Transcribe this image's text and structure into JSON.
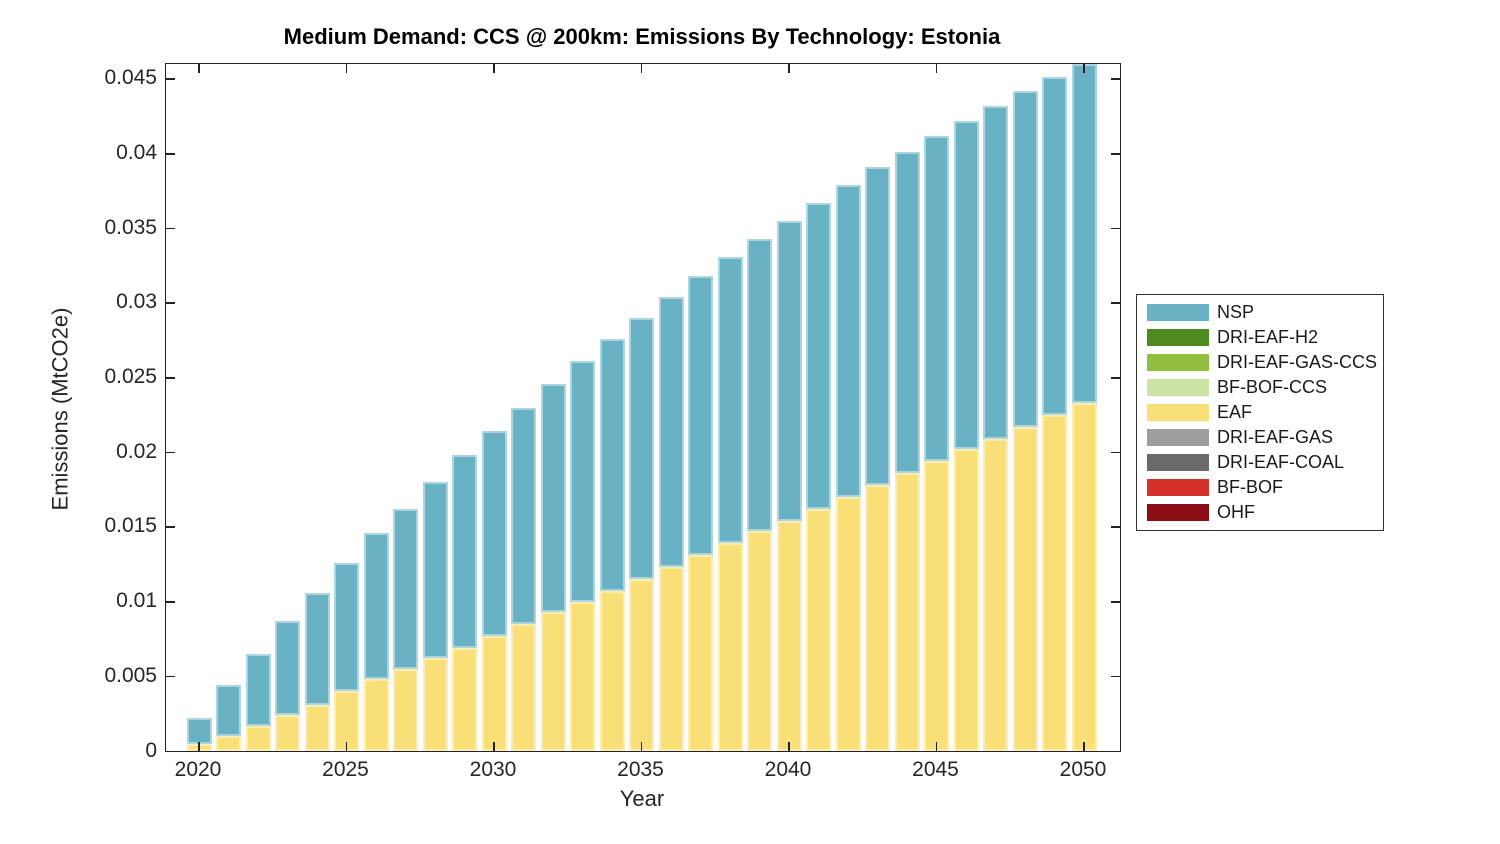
{
  "chart_data": {
    "type": "bar",
    "stacked": true,
    "title": "Medium Demand: CCS @ 200km: Emissions By Technology: Estonia",
    "xlabel": "Year",
    "ylabel": "Emissions (MtCO2e)",
    "grid": false,
    "legend_position": "outside-right",
    "ylim": [
      0,
      0.046
    ],
    "yticks": [
      0,
      0.005,
      0.01,
      0.015,
      0.02,
      0.025,
      0.03,
      0.035,
      0.04,
      0.045
    ],
    "ytick_labels": [
      "0",
      "0.005",
      "0.01",
      "0.015",
      "0.02",
      "0.025",
      "0.03",
      "0.035",
      "0.04",
      "0.045"
    ],
    "xticks": [
      2020,
      2025,
      2030,
      2035,
      2040,
      2045,
      2050
    ],
    "categories": [
      2020,
      2021,
      2022,
      2023,
      2024,
      2025,
      2026,
      2027,
      2028,
      2029,
      2030,
      2031,
      2032,
      2033,
      2034,
      2035,
      2036,
      2037,
      2038,
      2039,
      2040,
      2041,
      2042,
      2043,
      2044,
      2045,
      2046,
      2047,
      2048,
      2049,
      2050
    ],
    "stack_order_bottom_to_top": [
      "OHF",
      "BF-BOF",
      "DRI-EAF-COAL",
      "DRI-EAF-GAS",
      "EAF",
      "BF-BOF-CCS",
      "DRI-EAF-GAS-CCS",
      "DRI-EAF-H2",
      "NSP"
    ],
    "series": [
      {
        "name": "NSP",
        "color": "#68b2c3",
        "values": [
          0.0017,
          0.0034,
          0.0048,
          0.0063,
          0.0075,
          0.0086,
          0.0098,
          0.0107,
          0.0118,
          0.0129,
          0.0137,
          0.0145,
          0.0153,
          0.0161,
          0.0169,
          0.0175,
          0.0181,
          0.0187,
          0.0192,
          0.0196,
          0.0201,
          0.0205,
          0.0209,
          0.0213,
          0.0215,
          0.0218,
          0.022,
          0.0223,
          0.0225,
          0.0226,
          0.0227
        ]
      },
      {
        "name": "DRI-EAF-H2",
        "color": "#4e8a20",
        "values": [
          0,
          0,
          0,
          0,
          0,
          0,
          0,
          0,
          0,
          0,
          0,
          0,
          0,
          0,
          0,
          0,
          0,
          0,
          0,
          0,
          0,
          0,
          0,
          0,
          0,
          0,
          0,
          0,
          0,
          0,
          0
        ]
      },
      {
        "name": "DRI-EAF-GAS-CCS",
        "color": "#90c03d",
        "values": [
          0,
          0,
          0,
          0,
          0,
          0,
          0,
          0,
          0,
          0,
          0,
          0,
          0,
          0,
          0,
          0,
          0,
          0,
          0,
          0,
          0,
          0,
          0,
          0,
          0,
          0,
          0,
          0,
          0,
          0,
          0
        ]
      },
      {
        "name": "BF-BOF-CCS",
        "color": "#cbe3a4",
        "values": [
          0,
          0,
          0,
          0,
          0,
          0,
          0,
          0,
          0,
          0,
          0,
          0,
          0,
          0,
          0,
          0,
          0,
          0,
          0,
          0,
          0,
          0,
          0,
          0,
          0,
          0,
          0,
          0,
          0,
          0,
          0
        ]
      },
      {
        "name": "EAF",
        "color": "#f8df77",
        "values": [
          0.0005,
          0.001,
          0.0017,
          0.0024,
          0.0031,
          0.004,
          0.0048,
          0.0055,
          0.0062,
          0.0069,
          0.0077,
          0.0085,
          0.0093,
          0.01,
          0.0107,
          0.0115,
          0.0123,
          0.0131,
          0.0139,
          0.0147,
          0.0154,
          0.0162,
          0.017,
          0.0178,
          0.0186,
          0.0194,
          0.0202,
          0.0209,
          0.0217,
          0.0225,
          0.0233
        ]
      },
      {
        "name": "DRI-EAF-GAS",
        "color": "#9e9e9e",
        "values": [
          0,
          0,
          0,
          0,
          0,
          0,
          0,
          0,
          0,
          0,
          0,
          0,
          0,
          0,
          0,
          0,
          0,
          0,
          0,
          0,
          0,
          0,
          0,
          0,
          0,
          0,
          0,
          0,
          0,
          0,
          0
        ]
      },
      {
        "name": "DRI-EAF-COAL",
        "color": "#6a6a6a",
        "values": [
          0,
          0,
          0,
          0,
          0,
          0,
          0,
          0,
          0,
          0,
          0,
          0,
          0,
          0,
          0,
          0,
          0,
          0,
          0,
          0,
          0,
          0,
          0,
          0,
          0,
          0,
          0,
          0,
          0,
          0,
          0
        ]
      },
      {
        "name": "BF-BOF",
        "color": "#d6302b",
        "values": [
          0,
          0,
          0,
          0,
          0,
          0,
          0,
          0,
          0,
          0,
          0,
          0,
          0,
          0,
          0,
          0,
          0,
          0,
          0,
          0,
          0,
          0,
          0,
          0,
          0,
          0,
          0,
          0,
          0,
          0,
          0
        ]
      },
      {
        "name": "OHF",
        "color": "#8a0e14",
        "values": [
          0,
          0,
          0,
          0,
          0,
          0,
          0,
          0,
          0,
          0,
          0,
          0,
          0,
          0,
          0,
          0,
          0,
          0,
          0,
          0,
          0,
          0,
          0,
          0,
          0,
          0,
          0,
          0,
          0,
          0,
          0
        ]
      }
    ]
  }
}
